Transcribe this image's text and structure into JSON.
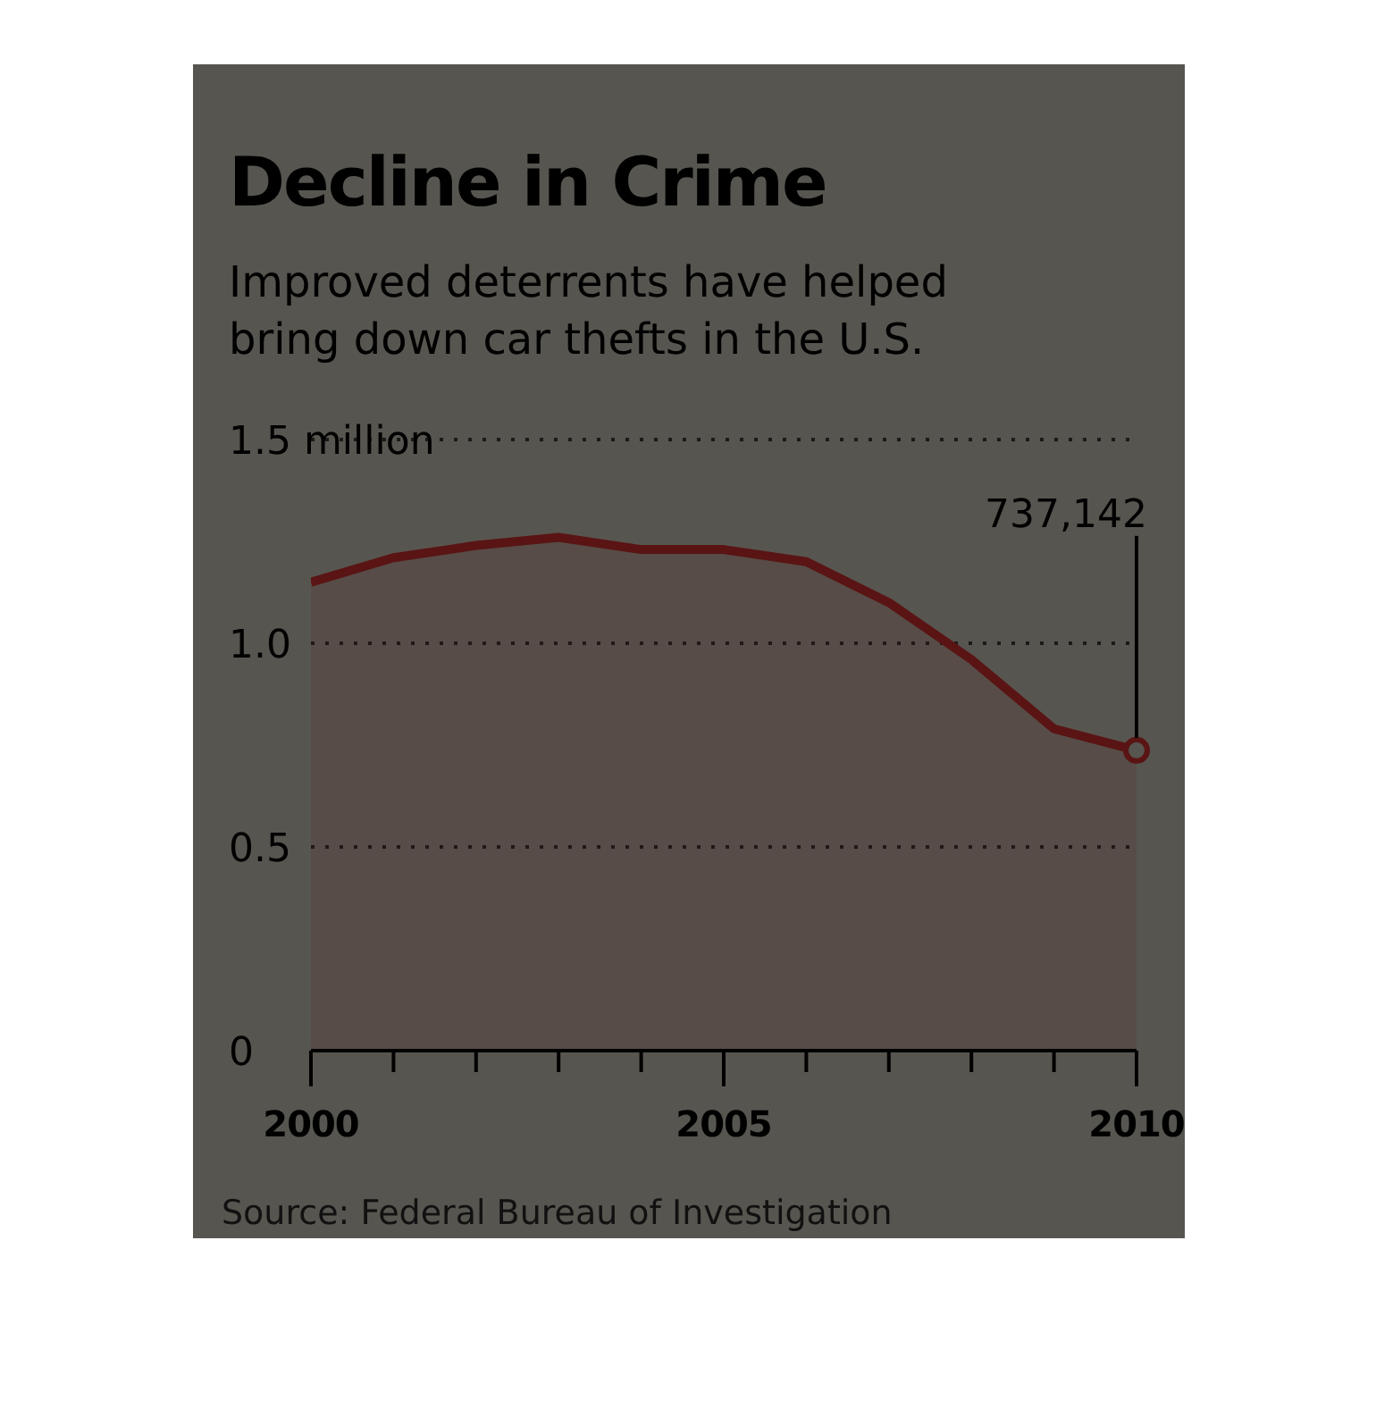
{
  "chart_data": {
    "type": "area",
    "title": "Decline in Crime",
    "subtitle": "Improved deterrents have helped bring down car thefts in the U.S.",
    "x": [
      2000,
      2001,
      2002,
      2003,
      2004,
      2005,
      2006,
      2007,
      2008,
      2009,
      2010
    ],
    "series": [
      {
        "color": "#5a1414",
        "values": [
          1.15,
          1.21,
          1.24,
          1.26,
          1.23,
          1.23,
          1.2,
          1.1,
          0.96,
          0.79,
          0.737142
        ]
      }
    ],
    "xlim": [
      2000,
      2010
    ],
    "xticks": [
      2000,
      {
        "value": 2001,
        "label": null
      },
      {
        "value": 2002,
        "label": null
      },
      {
        "value": 2003,
        "label": null
      },
      {
        "value": 2004,
        "label": null
      },
      2005,
      {
        "value": 2006,
        "label": null
      },
      {
        "value": 2007,
        "label": null
      },
      {
        "value": 2008,
        "label": null
      },
      {
        "value": 2009,
        "label": null
      },
      2010
    ],
    "ylim": [
      0,
      1.5
    ],
    "yticks": [
      0,
      0.5,
      {
        "value": 1,
        "label": "1.0"
      },
      {
        "value": 1.5,
        "label": "1.5 million"
      }
    ],
    "grid": "y",
    "marker": "none",
    "annotations": [
      {
        "text": "737,142",
        "x": 2010,
        "y": 0.737142
      },
      "Source: Federal Bureau of Investigation"
    ]
  }
}
